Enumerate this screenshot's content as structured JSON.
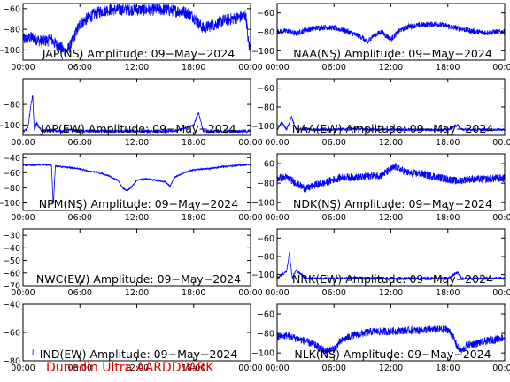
{
  "credit": "Dunedin Ultra AARDDVARK",
  "colors": {
    "trace": "#0000ff",
    "axes": "#000000",
    "background": "#ffffff",
    "credit": "#e00000"
  },
  "chart_data": [
    {
      "type": "line",
      "title": "JAP(NS) Amplitude: 09−May−2024",
      "x_ticks": [
        "00:00",
        "06:00",
        "12:00",
        "18:00",
        "00:00"
      ],
      "xlim": [
        0,
        24
      ],
      "y_ticks": [
        "−60",
        "−80",
        "−100"
      ],
      "ylim": [
        -110,
        -55
      ],
      "x": [
        0,
        1,
        2,
        3,
        3.5,
        4,
        4.5,
        5,
        5.5,
        6,
        7,
        8,
        9,
        10,
        11,
        12,
        13,
        14,
        15,
        16,
        17,
        17.5,
        18,
        18.5,
        19,
        20,
        21,
        22,
        23,
        23.5,
        23.8,
        24
      ],
      "y": [
        -90,
        -88,
        -92,
        -90,
        -95,
        -98,
        -102,
        -96,
        -85,
        -75,
        -68,
        -63,
        -61,
        -61,
        -61,
        -61,
        -61,
        -61,
        -61,
        -62,
        -63,
        -65,
        -68,
        -74,
        -79,
        -76,
        -72,
        -70,
        -68,
        -66,
        -95,
        -98
      ],
      "noise": 6
    },
    {
      "type": "line",
      "title": "NAA(NS) Amplitude: 09−May−2024",
      "x_ticks": [
        "00:00",
        "06:00",
        "12:00",
        "18:00",
        "00:00"
      ],
      "xlim": [
        0,
        24
      ],
      "y_ticks": [
        "−60",
        "−80",
        "−100"
      ],
      "ylim": [
        -110,
        -50
      ],
      "x": [
        0,
        1,
        2,
        3,
        4,
        5,
        6,
        7,
        8,
        9,
        9.5,
        10,
        11,
        12,
        12.5,
        13,
        14,
        15,
        16,
        17,
        18,
        19,
        20,
        21,
        22,
        23,
        24
      ],
      "y": [
        -80,
        -79,
        -82,
        -78,
        -76,
        -75,
        -76,
        -78,
        -82,
        -86,
        -92,
        -85,
        -80,
        -88,
        -83,
        -78,
        -74,
        -73,
        -72,
        -72,
        -74,
        -76,
        -78,
        -80,
        -81,
        -80,
        -80
      ],
      "noise": 3
    },
    {
      "type": "line",
      "title": "JAP(EW) Amplitude: 09−May−2024",
      "x_ticks": [
        "00:00",
        "06:00",
        "12:00",
        "18:00",
        "00:00"
      ],
      "xlim": [
        0,
        24
      ],
      "y_ticks": [
        "−80",
        "−100"
      ],
      "ylim": [
        -110,
        -55
      ],
      "x": [
        0,
        0.5,
        1,
        1.2,
        1.4,
        2,
        3,
        4,
        5,
        6,
        8,
        10,
        12,
        14,
        16,
        18,
        18.5,
        19,
        20,
        22,
        24
      ],
      "y": [
        -106,
        -104,
        -70,
        -106,
        -98,
        -106,
        -105,
        -106,
        -105,
        -106,
        -106,
        -106,
        -106,
        -106,
        -106,
        -100,
        -88,
        -106,
        -106,
        -106,
        -106
      ],
      "noise": 1.5
    },
    {
      "type": "line",
      "title": "NAA(EW) Amplitude: 09−May−2024",
      "x_ticks": [
        "00:00",
        "06:00",
        "12:00",
        "18:00",
        "00:00"
      ],
      "xlim": [
        0,
        24
      ],
      "y_ticks": [
        "−60",
        "−80",
        "−100"
      ],
      "ylim": [
        -110,
        -50
      ],
      "x": [
        0,
        0.5,
        1,
        1.5,
        2,
        3,
        4,
        6,
        8,
        10,
        12,
        14,
        16,
        18,
        19,
        19.5,
        20,
        22,
        24
      ],
      "y": [
        -104,
        -96,
        -104,
        -90,
        -104,
        -103,
        -104,
        -104,
        -103,
        -104,
        -104,
        -104,
        -104,
        -104,
        -99,
        -104,
        -104,
        -104,
        -104
      ],
      "noise": 1.5
    },
    {
      "type": "line",
      "title": "NPM(NS) Amplitude: 09−May−2024",
      "x_ticks": [
        "00:00",
        "06:00",
        "12:00",
        "18:00",
        "00:00"
      ],
      "xlim": [
        0,
        24
      ],
      "y_ticks": [
        "−40",
        "−60",
        "−80",
        "−100"
      ],
      "ylim": [
        -110,
        -35
      ],
      "x": [
        0,
        1,
        2,
        3,
        3.2,
        3.4,
        4,
        5,
        6,
        7,
        8,
        9,
        10,
        10.5,
        11,
        11.5,
        12,
        13,
        14,
        15,
        15.5,
        16,
        17,
        18,
        19,
        20,
        21,
        22,
        23,
        24
      ],
      "y": [
        -50,
        -50,
        -49,
        -50,
        -105,
        -51,
        -52,
        -53,
        -55,
        -58,
        -60,
        -64,
        -70,
        -80,
        -84,
        -78,
        -70,
        -68,
        -70,
        -72,
        -78,
        -66,
        -60,
        -56,
        -55,
        -54,
        -52,
        -51,
        -50,
        -49
      ],
      "noise": 1
    },
    {
      "type": "line",
      "title": "NDK(NS) Amplitude: 09−May−2024",
      "x_ticks": [
        "00:00",
        "06:00",
        "12:00",
        "18:00",
        "00:00"
      ],
      "xlim": [
        0,
        24
      ],
      "y_ticks": [
        "−60",
        "−80",
        "−100"
      ],
      "ylim": [
        -108,
        -50
      ],
      "x": [
        0,
        1,
        2,
        3,
        4,
        5,
        6,
        7,
        8,
        9,
        10,
        11,
        12,
        12.5,
        13,
        14,
        15,
        16,
        17,
        18,
        19,
        20,
        21,
        22,
        23,
        24
      ],
      "y": [
        -75,
        -74,
        -80,
        -86,
        -82,
        -80,
        -76,
        -74,
        -74,
        -74,
        -72,
        -72,
        -66,
        -63,
        -66,
        -70,
        -70,
        -72,
        -74,
        -76,
        -78,
        -76,
        -76,
        -76,
        -75,
        -75
      ],
      "noise": 4
    },
    {
      "type": "line",
      "title": "NWC(EW) Amplitude: 09−May−2024",
      "x_ticks": [
        "00:00",
        "06:00",
        "12:00",
        "18:00",
        "00:00"
      ],
      "xlim": [
        0,
        24
      ],
      "y_ticks": [
        "−30",
        "−40",
        "−50",
        "−60",
        "−70"
      ],
      "ylim": [
        -70,
        -25
      ],
      "x": [],
      "y": [],
      "noise": 0
    },
    {
      "type": "line",
      "title": "NRK(EW) Amplitude: 09−May−2024",
      "x_ticks": [
        "00:00",
        "06:00",
        "12:00",
        "18:00",
        "00:00"
      ],
      "xlim": [
        0,
        24
      ],
      "y_ticks": [
        "−60",
        "−80",
        "−100"
      ],
      "ylim": [
        -112,
        -50
      ],
      "x": [
        0,
        1,
        1.3,
        1.6,
        2,
        3,
        4,
        6,
        8,
        10,
        12,
        14,
        16,
        18,
        19,
        19.5,
        20,
        22,
        24
      ],
      "y": [
        -104,
        -96,
        -76,
        -104,
        -95,
        -104,
        -104,
        -104,
        -103,
        -104,
        -104,
        -104,
        -104,
        -104,
        -98,
        -104,
        -104,
        -104,
        -104
      ],
      "noise": 1.5
    },
    {
      "type": "line",
      "title": "IND(EW) Amplitude: 09−May−2024",
      "x_ticks": [
        "00:00",
        "06:00",
        "12:00",
        "18:00",
        "00:00"
      ],
      "xlim": [
        0,
        24
      ],
      "y_ticks": [
        "−40",
        "−60",
        "−80"
      ],
      "ylim": [
        -80,
        -40
      ],
      "x": [
        1,
        1.05,
        1.1
      ],
      "y": [
        -79,
        -70,
        -79
      ],
      "noise": 0
    },
    {
      "type": "line",
      "title": "NLK(NS) Amplitude: 09−May−2024",
      "x_ticks": [
        "00:00",
        "06:00",
        "12:00",
        "18:00",
        "00:00"
      ],
      "xlim": [
        0,
        24
      ],
      "y_ticks": [
        "−60",
        "−80",
        "−100"
      ],
      "ylim": [
        -108,
        -50
      ],
      "x": [
        0,
        1,
        2,
        3,
        4,
        5,
        6,
        6.5,
        7,
        8,
        9,
        10,
        11,
        12,
        13,
        14,
        15,
        16,
        17,
        18,
        18.5,
        19,
        19.5,
        20,
        21,
        22,
        23,
        24
      ],
      "y": [
        -84,
        -82,
        -85,
        -88,
        -92,
        -98,
        -96,
        -90,
        -86,
        -82,
        -80,
        -78,
        -78,
        -78,
        -77,
        -77,
        -77,
        -76,
        -76,
        -76,
        -82,
        -94,
        -98,
        -92,
        -90,
        -88,
        -86,
        -84
      ],
      "noise": 4
    }
  ]
}
